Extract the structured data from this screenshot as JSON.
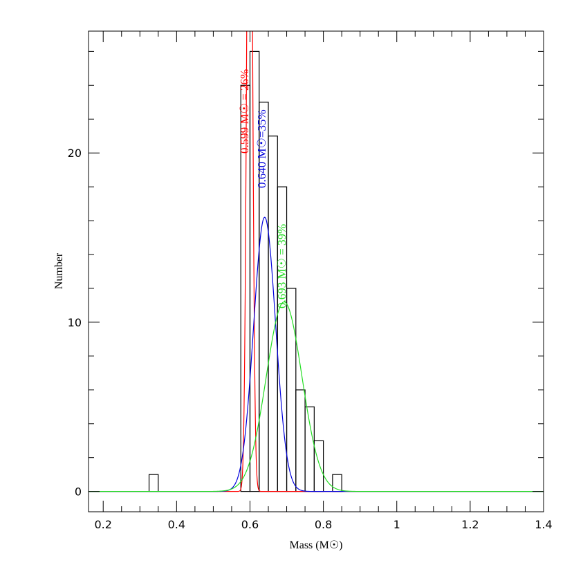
{
  "chart_data": {
    "type": "histogram",
    "xlabel": "Mass (M☉)",
    "ylabel": "Number",
    "bins": [
      0.325,
      0.35,
      0.375,
      0.4,
      0.425,
      0.45,
      0.475,
      0.5,
      0.525,
      0.55,
      0.575,
      0.6,
      0.625,
      0.65,
      0.675,
      0.7,
      0.725,
      0.75,
      0.775,
      0.8,
      0.825,
      0.85
    ],
    "counts": [
      1,
      0,
      0,
      0,
      0,
      0,
      0,
      0,
      0,
      0,
      24,
      26,
      23,
      21,
      18,
      12,
      6,
      5,
      3,
      0,
      1
    ],
    "color": "#000000",
    "curves": [
      {
        "color": "#ff0000",
        "mean": 0.599,
        "sigma": 0.007,
        "amplitude": 51.9,
        "label": "0.599 M☉ = 26%"
      },
      {
        "color": "#0000dd",
        "mean": 0.64,
        "sigma": 0.03,
        "amplitude": 16.2,
        "label": "0.640 M☉=35%"
      },
      {
        "color": "#22dd22",
        "mean": 0.693,
        "sigma": 0.0486,
        "amplitude": 11.2,
        "label": "0.693 M☉ = 39%"
      }
    ],
    "xlim": [
      0.16,
      1.4
    ],
    "ylim": [
      -1.2,
      27.2
    ],
    "xticks": [
      0.2,
      0.4,
      0.6,
      0.8,
      1,
      1.2,
      1.4
    ],
    "yticks": [
      0,
      10,
      20
    ],
    "xminorticks": [
      0.25,
      0.3,
      0.35,
      0.45,
      0.5,
      0.55,
      0.65,
      0.7,
      0.75,
      0.85,
      0.9,
      0.95,
      1.05,
      1.1,
      1.15,
      1.25,
      1.3,
      1.35
    ],
    "yminorticks": [
      2,
      4,
      6,
      8,
      12,
      14,
      16,
      18,
      22,
      24,
      26
    ]
  }
}
